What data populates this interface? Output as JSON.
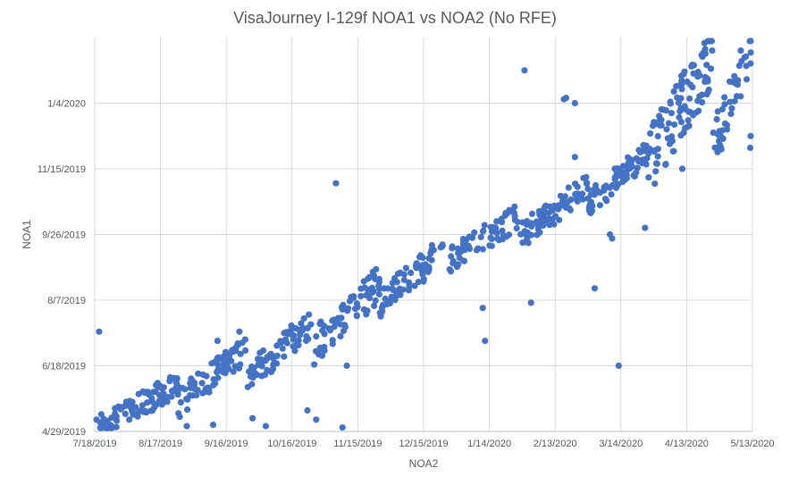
{
  "chart_data": {
    "type": "scatter",
    "title": "VisaJourney I-129f NOA1 vs NOA2 (No RFE)",
    "xlabel": "NOA2",
    "ylabel": "NOA1",
    "x_ticks": [
      "7/18/2019",
      "8/17/2019",
      "9/16/2019",
      "10/16/2019",
      "11/15/2019",
      "12/15/2019",
      "1/14/2020",
      "2/13/2020",
      "3/14/2020",
      "4/13/2020",
      "5/13/2020"
    ],
    "y_ticks": [
      "4/29/2019",
      "6/18/2019",
      "8/7/2019",
      "9/26/2019",
      "11/15/2019",
      "1/4/2020"
    ],
    "xlim": [
      "2019-07-18",
      "2020-05-13"
    ],
    "ylim": [
      "2019-04-29",
      "2020-02-23"
    ],
    "grid": "both",
    "legend": "none",
    "color": "#4472c4",
    "outliers": [
      {
        "x": "2019-07-18",
        "y": "2019-05-08"
      },
      {
        "x": "2019-07-20",
        "y": "2019-07-14"
      },
      {
        "x": "2019-07-21",
        "y": "2019-05-12"
      },
      {
        "x": "2019-08-29",
        "y": "2019-05-03"
      },
      {
        "x": "2019-09-10",
        "y": "2019-05-04"
      },
      {
        "x": "2019-09-12",
        "y": "2019-07-07"
      },
      {
        "x": "2019-09-22",
        "y": "2019-07-14"
      },
      {
        "x": "2019-09-28",
        "y": "2019-05-09"
      },
      {
        "x": "2019-10-04",
        "y": "2019-05-03"
      },
      {
        "x": "2019-10-23",
        "y": "2019-05-15"
      },
      {
        "x": "2019-10-27",
        "y": "2019-05-08"
      },
      {
        "x": "2019-11-05",
        "y": "2019-11-04"
      },
      {
        "x": "2019-11-08",
        "y": "2019-05-02"
      },
      {
        "x": "2019-11-10",
        "y": "2019-06-18"
      },
      {
        "x": "2019-11-09",
        "y": "2019-07-19"
      },
      {
        "x": "2020-01-11",
        "y": "2019-08-01"
      },
      {
        "x": "2020-01-12",
        "y": "2019-07-07"
      },
      {
        "x": "2020-01-30",
        "y": "2020-01-29"
      },
      {
        "x": "2020-02-02",
        "y": "2019-08-05"
      },
      {
        "x": "2020-02-17",
        "y": "2020-01-07"
      },
      {
        "x": "2020-02-18",
        "y": "2020-01-08"
      },
      {
        "x": "2020-02-22",
        "y": "2020-01-04"
      },
      {
        "x": "2020-02-22",
        "y": "2019-11-24"
      },
      {
        "x": "2020-03-02",
        "y": "2019-08-16"
      },
      {
        "x": "2020-03-09",
        "y": "2019-09-26"
      },
      {
        "x": "2020-03-10",
        "y": "2019-09-23"
      },
      {
        "x": "2020-03-13",
        "y": "2019-06-18"
      },
      {
        "x": "2020-03-25",
        "y": "2019-10-01"
      },
      {
        "x": "2020-04-11",
        "y": "2019-11-15"
      },
      {
        "x": "2020-05-13",
        "y": "2019-12-10"
      },
      {
        "x": "2020-05-12",
        "y": "2019-12-01"
      }
    ],
    "trend_clusters": [
      {
        "x_from": "2019-07-20",
        "x_to": "2019-08-25",
        "y_from": "2019-04-30",
        "y_to": "2019-06-05",
        "count": 95
      },
      {
        "x_from": "2019-08-25",
        "x_to": "2019-09-25",
        "y_from": "2019-05-20",
        "y_to": "2019-06-30",
        "count": 80
      },
      {
        "x_from": "2019-09-25",
        "x_to": "2019-10-25",
        "y_from": "2019-06-08",
        "y_to": "2019-07-20",
        "count": 75
      },
      {
        "x_from": "2019-10-25",
        "x_to": "2019-11-25",
        "y_from": "2019-07-01",
        "y_to": "2019-08-20",
        "count": 75
      },
      {
        "x_from": "2019-11-25",
        "x_to": "2019-12-25",
        "y_from": "2019-08-05",
        "y_to": "2019-09-15",
        "count": 70
      },
      {
        "x_from": "2019-12-25",
        "x_to": "2020-01-28",
        "y_from": "2019-09-05",
        "y_to": "2019-10-10",
        "count": 70
      },
      {
        "x_from": "2020-01-28",
        "x_to": "2020-02-28",
        "y_from": "2019-09-25",
        "y_to": "2019-11-01",
        "count": 75
      },
      {
        "x_from": "2020-02-28",
        "x_to": "2020-03-25",
        "y_from": "2019-10-20",
        "y_to": "2019-11-25",
        "count": 75
      },
      {
        "x_from": "2020-03-25",
        "x_to": "2020-04-25",
        "y_from": "2019-11-15",
        "y_to": "2020-02-10",
        "count": 110
      },
      {
        "x_from": "2020-04-25",
        "x_to": "2020-05-13",
        "y_from": "2019-12-05",
        "y_to": "2020-02-18",
        "count": 45
      }
    ]
  }
}
